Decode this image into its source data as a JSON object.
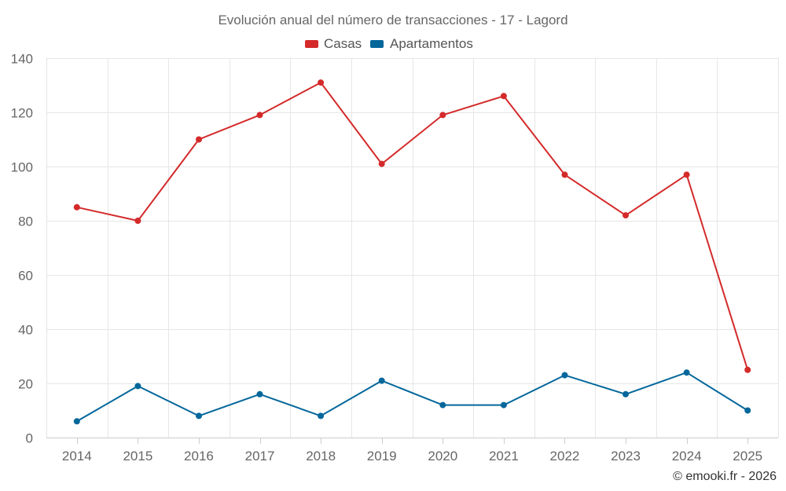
{
  "chart_data": {
    "type": "line",
    "title": "Evolución anual del número de transacciones - 17 - Lagord",
    "categories": [
      "2014",
      "2015",
      "2016",
      "2017",
      "2018",
      "2019",
      "2020",
      "2021",
      "2022",
      "2023",
      "2024",
      "2025"
    ],
    "series": [
      {
        "name": "Casas",
        "color": "#d42a2a",
        "values": [
          85,
          80,
          110,
          119,
          131,
          101,
          119,
          126,
          97,
          82,
          97,
          25
        ]
      },
      {
        "name": "Apartamentos",
        "color": "#04679b",
        "values": [
          6,
          19,
          8,
          16,
          8,
          21,
          12,
          12,
          23,
          16,
          24,
          10
        ]
      }
    ],
    "ylim": [
      0,
      140
    ],
    "yticks": [
      0,
      20,
      40,
      60,
      80,
      100,
      120,
      140
    ],
    "grid": true,
    "legend": "top-center",
    "xlabel": "",
    "ylabel": ""
  },
  "credit": "© emooki.fr - 2026"
}
